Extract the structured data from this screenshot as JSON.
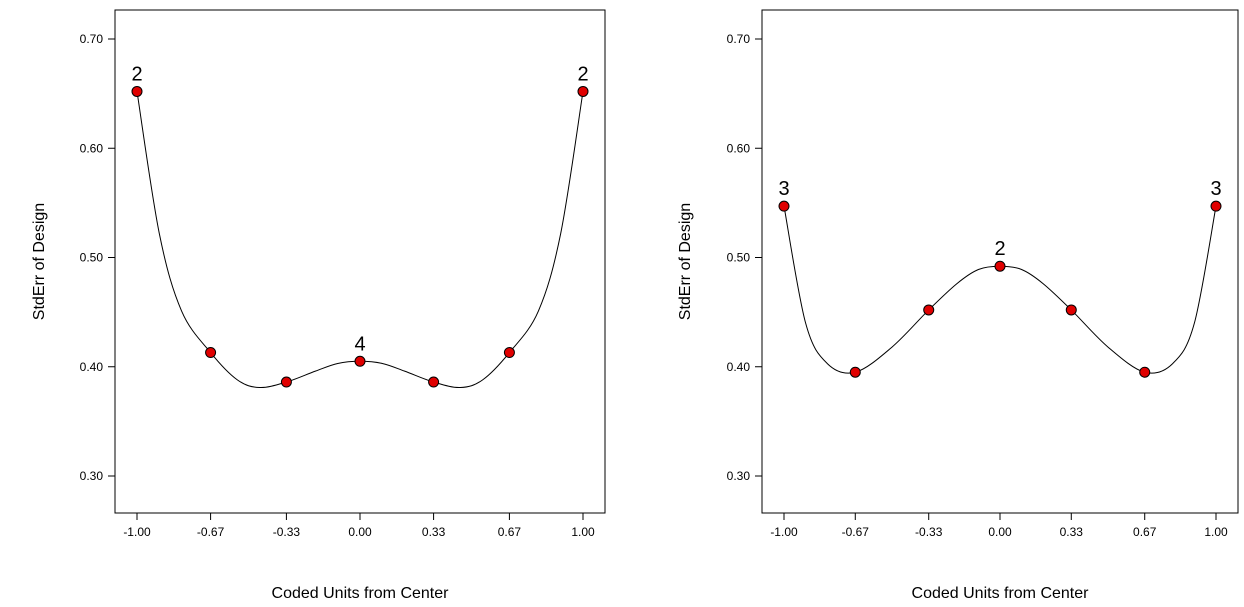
{
  "chart_data": [
    {
      "type": "line",
      "xlabel": "Coded Units from Center",
      "ylabel": "StdErr of Design",
      "xlim": [
        -1.0,
        1.0
      ],
      "ylim": [
        0.3,
        0.7
      ],
      "x_ticks": [
        "-1.00",
        "-0.67",
        "-0.33",
        "0.00",
        "0.33",
        "0.67",
        "1.00"
      ],
      "y_ticks": [
        "0.30",
        "0.40",
        "0.50",
        "0.60",
        "0.70"
      ],
      "grid": false,
      "point_color": "#e00000",
      "curve": [
        {
          "x": -1.0,
          "y": 0.652
        },
        {
          "x": -0.9,
          "y": 0.522
        },
        {
          "x": -0.8,
          "y": 0.451
        },
        {
          "x": -0.67,
          "y": 0.413
        },
        {
          "x": -0.55,
          "y": 0.388
        },
        {
          "x": -0.45,
          "y": 0.381
        },
        {
          "x": -0.33,
          "y": 0.386
        },
        {
          "x": -0.2,
          "y": 0.396
        },
        {
          "x": -0.1,
          "y": 0.403
        },
        {
          "x": 0.0,
          "y": 0.405
        },
        {
          "x": 0.1,
          "y": 0.403
        },
        {
          "x": 0.2,
          "y": 0.396
        },
        {
          "x": 0.33,
          "y": 0.386
        },
        {
          "x": 0.45,
          "y": 0.381
        },
        {
          "x": 0.55,
          "y": 0.388
        },
        {
          "x": 0.67,
          "y": 0.413
        },
        {
          "x": 0.8,
          "y": 0.451
        },
        {
          "x": 0.9,
          "y": 0.522
        },
        {
          "x": 1.0,
          "y": 0.652
        }
      ],
      "points": [
        {
          "x": -1.0,
          "y": 0.652,
          "label": "2"
        },
        {
          "x": -0.67,
          "y": 0.413,
          "label": ""
        },
        {
          "x": -0.33,
          "y": 0.386,
          "label": ""
        },
        {
          "x": 0.0,
          "y": 0.405,
          "label": "4"
        },
        {
          "x": 0.33,
          "y": 0.386,
          "label": ""
        },
        {
          "x": 0.67,
          "y": 0.413,
          "label": ""
        },
        {
          "x": 1.0,
          "y": 0.652,
          "label": "2"
        }
      ]
    },
    {
      "type": "line",
      "xlabel": "Coded Units from Center",
      "ylabel": "StdErr of Design",
      "xlim": [
        -1.0,
        1.0
      ],
      "ylim": [
        0.3,
        0.7
      ],
      "x_ticks": [
        "-1.00",
        "-0.67",
        "-0.33",
        "0.00",
        "0.33",
        "0.67",
        "1.00"
      ],
      "y_ticks": [
        "0.30",
        "0.40",
        "0.50",
        "0.60",
        "0.70"
      ],
      "grid": false,
      "point_color": "#e00000",
      "curve": [
        {
          "x": -1.0,
          "y": 0.547
        },
        {
          "x": -0.9,
          "y": 0.44
        },
        {
          "x": -0.8,
          "y": 0.403
        },
        {
          "x": -0.67,
          "y": 0.395
        },
        {
          "x": -0.5,
          "y": 0.418
        },
        {
          "x": -0.33,
          "y": 0.452
        },
        {
          "x": -0.2,
          "y": 0.476
        },
        {
          "x": -0.1,
          "y": 0.489
        },
        {
          "x": 0.0,
          "y": 0.492
        },
        {
          "x": 0.1,
          "y": 0.489
        },
        {
          "x": 0.2,
          "y": 0.476
        },
        {
          "x": 0.33,
          "y": 0.452
        },
        {
          "x": 0.5,
          "y": 0.418
        },
        {
          "x": 0.67,
          "y": 0.395
        },
        {
          "x": 0.8,
          "y": 0.403
        },
        {
          "x": 0.9,
          "y": 0.44
        },
        {
          "x": 1.0,
          "y": 0.547
        }
      ],
      "points": [
        {
          "x": -1.0,
          "y": 0.547,
          "label": "3"
        },
        {
          "x": -0.67,
          "y": 0.395,
          "label": ""
        },
        {
          "x": -0.33,
          "y": 0.452,
          "label": ""
        },
        {
          "x": 0.0,
          "y": 0.492,
          "label": "2"
        },
        {
          "x": 0.33,
          "y": 0.452,
          "label": ""
        },
        {
          "x": 0.67,
          "y": 0.395,
          "label": ""
        },
        {
          "x": 1.0,
          "y": 0.547,
          "label": "3"
        }
      ]
    }
  ]
}
